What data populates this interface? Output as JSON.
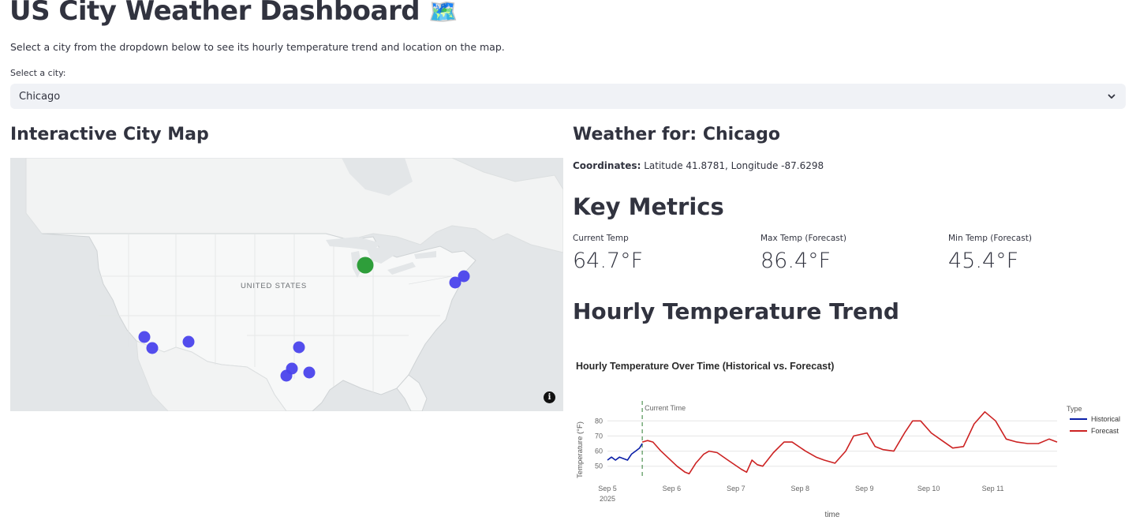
{
  "header": {
    "title": "US City Weather Dashboard",
    "title_emoji": "🗺️",
    "intro": "Select a city from the dropdown below to see its hourly temperature trend and location on the map."
  },
  "city_select": {
    "label": "Select a city:",
    "value": "Chicago",
    "icon": "chevron-down-icon"
  },
  "map": {
    "title": "Interactive City Map",
    "country_label": "UNITED STATES",
    "selected_color": "#2e9e3a",
    "marker_color": "#4a43ec",
    "info_icon": "info-icon",
    "info_glyph": "i"
  },
  "weather": {
    "title": "Weather for: Chicago",
    "coords_label": "Coordinates:",
    "coords_value": "Latitude 41.8781, Longitude -87.6298"
  },
  "metrics": {
    "title": "Key Metrics",
    "items": [
      {
        "label": "Current Temp",
        "value": "64.7°F"
      },
      {
        "label": "Max Temp (Forecast)",
        "value": "86.4°F"
      },
      {
        "label": "Min Temp (Forecast)",
        "value": "45.4°F"
      }
    ]
  },
  "trend": {
    "title": "Hourly Temperature Trend"
  },
  "chart_data": {
    "type": "line",
    "title": "Hourly Temperature Over Time (Historical vs. Forecast)",
    "xlabel": "time",
    "ylabel": "Temperature (°F)",
    "yticks": [
      50,
      60,
      70,
      80
    ],
    "ylim": [
      42,
      88
    ],
    "xlim": [
      "2025-09-05 00:00",
      "2025-09-12 00:00"
    ],
    "xticks": [
      {
        "date": "2025-09-05",
        "label": "Sep 5",
        "sublabel": "2025"
      },
      {
        "date": "2025-09-06",
        "label": "Sep 6"
      },
      {
        "date": "2025-09-07",
        "label": "Sep 7"
      },
      {
        "date": "2025-09-08",
        "label": "Sep 8"
      },
      {
        "date": "2025-09-09",
        "label": "Sep 9"
      },
      {
        "date": "2025-09-10",
        "label": "Sep 10"
      },
      {
        "date": "2025-09-11",
        "label": "Sep 11"
      }
    ],
    "grid": true,
    "legend": {
      "title": "Type",
      "position": "right"
    },
    "annotation": {
      "text": "Current Time",
      "x": "2025-09-05 13:00"
    },
    "series": [
      {
        "name": "Historical",
        "color": "#0b1fa8",
        "x": [
          "2025-09-05 00:00",
          "2025-09-05 01:30",
          "2025-09-05 03:00",
          "2025-09-05 04:30",
          "2025-09-05 06:00",
          "2025-09-05 07:30",
          "2025-09-05 09:00",
          "2025-09-05 10:30",
          "2025-09-05 12:00",
          "2025-09-05 13:00"
        ],
        "values": [
          54,
          56,
          54,
          56,
          55,
          54,
          58,
          60,
          62,
          65
        ]
      },
      {
        "name": "Forecast",
        "color": "#cc2222",
        "x": [
          "2025-09-05 13:00",
          "2025-09-05 15:00",
          "2025-09-05 17:00",
          "2025-09-05 20:00",
          "2025-09-05 23:00",
          "2025-09-06 02:00",
          "2025-09-06 05:00",
          "2025-09-06 06:30",
          "2025-09-06 09:00",
          "2025-09-06 12:00",
          "2025-09-06 14:00",
          "2025-09-06 17:00",
          "2025-09-06 21:00",
          "2025-09-07 02:00",
          "2025-09-07 04:00",
          "2025-09-07 06:00",
          "2025-09-07 08:00",
          "2025-09-07 10:00",
          "2025-09-07 14:00",
          "2025-09-07 18:00",
          "2025-09-07 21:00",
          "2025-09-08 02:00",
          "2025-09-08 06:00",
          "2025-09-08 09:00",
          "2025-09-08 13:00",
          "2025-09-08 17:00",
          "2025-09-08 20:00",
          "2025-09-09 01:00",
          "2025-09-09 04:00",
          "2025-09-09 07:00",
          "2025-09-09 11:00",
          "2025-09-09 15:00",
          "2025-09-09 18:00",
          "2025-09-09 21:00",
          "2025-09-10 01:00",
          "2025-09-10 05:00",
          "2025-09-10 09:00",
          "2025-09-10 13:00",
          "2025-09-10 17:00",
          "2025-09-10 21:00",
          "2025-09-11 01:00",
          "2025-09-11 05:00",
          "2025-09-11 09:00",
          "2025-09-11 13:00",
          "2025-09-11 17:00",
          "2025-09-11 21:00",
          "2025-09-12 00:00"
        ],
        "values": [
          66,
          67,
          66,
          60,
          55,
          50,
          46,
          45,
          52,
          58,
          60,
          59,
          54,
          48,
          46,
          54,
          51,
          50,
          59,
          66,
          66,
          60,
          56,
          54,
          52,
          60,
          70,
          72,
          63,
          61,
          60,
          72,
          80,
          80,
          72,
          67,
          62,
          63,
          78,
          86,
          80,
          68,
          66,
          65,
          65,
          68,
          66
        ]
      }
    ]
  }
}
